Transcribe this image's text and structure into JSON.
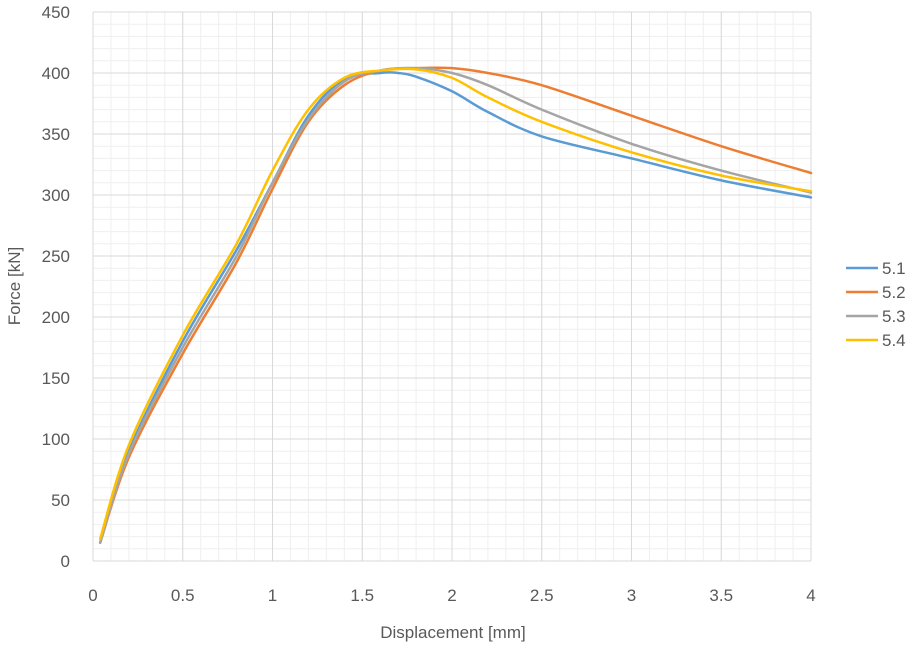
{
  "chart_data": {
    "type": "line",
    "xlabel": "Displacement [mm]",
    "ylabel": "Force [kN]",
    "xlim": [
      0,
      4
    ],
    "ylim": [
      0,
      450
    ],
    "x_ticks": [
      0,
      0.5,
      1,
      1.5,
      2,
      2.5,
      3,
      3.5,
      4
    ],
    "x_tick_labels": [
      "0",
      "0.5",
      "1",
      "1.5",
      "2",
      "2.5",
      "3",
      "3.5",
      "4"
    ],
    "y_ticks": [
      0,
      50,
      100,
      150,
      200,
      250,
      300,
      350,
      400,
      450
    ],
    "y_tick_labels": [
      "0",
      "50",
      "100",
      "150",
      "200",
      "250",
      "300",
      "350",
      "400",
      "450"
    ],
    "grid": true,
    "legend_position": "right",
    "series": [
      {
        "name": "5.1",
        "color": "#5B9BD5",
        "points": [
          [
            0.04,
            15
          ],
          [
            0.2,
            90
          ],
          [
            0.5,
            180
          ],
          [
            0.8,
            255
          ],
          [
            1.0,
            310
          ],
          [
            1.2,
            365
          ],
          [
            1.4,
            395
          ],
          [
            1.6,
            400
          ],
          [
            1.7,
            400
          ],
          [
            1.8,
            397
          ],
          [
            2.0,
            385
          ],
          [
            2.2,
            368
          ],
          [
            2.5,
            348
          ],
          [
            3.0,
            330
          ],
          [
            3.5,
            312
          ],
          [
            4.0,
            298
          ]
        ]
      },
      {
        "name": "5.2",
        "color": "#ED7D31",
        "points": [
          [
            0.04,
            15
          ],
          [
            0.2,
            85
          ],
          [
            0.5,
            170
          ],
          [
            0.8,
            245
          ],
          [
            1.0,
            305
          ],
          [
            1.2,
            360
          ],
          [
            1.4,
            390
          ],
          [
            1.6,
            402
          ],
          [
            1.8,
            404
          ],
          [
            2.0,
            404
          ],
          [
            2.2,
            400
          ],
          [
            2.5,
            390
          ],
          [
            3.0,
            365
          ],
          [
            3.5,
            340
          ],
          [
            4.0,
            318
          ]
        ]
      },
      {
        "name": "5.3",
        "color": "#A5A5A5",
        "points": [
          [
            0.04,
            15
          ],
          [
            0.2,
            88
          ],
          [
            0.5,
            175
          ],
          [
            0.8,
            250
          ],
          [
            1.0,
            310
          ],
          [
            1.2,
            362
          ],
          [
            1.4,
            393
          ],
          [
            1.6,
            402
          ],
          [
            1.8,
            404
          ],
          [
            2.0,
            400
          ],
          [
            2.2,
            390
          ],
          [
            2.5,
            370
          ],
          [
            3.0,
            342
          ],
          [
            3.5,
            320
          ],
          [
            4.0,
            302
          ]
        ]
      },
      {
        "name": "5.4",
        "color": "#FFC000",
        "points": [
          [
            0.04,
            18
          ],
          [
            0.2,
            95
          ],
          [
            0.5,
            185
          ],
          [
            0.8,
            260
          ],
          [
            1.0,
            320
          ],
          [
            1.2,
            370
          ],
          [
            1.4,
            396
          ],
          [
            1.6,
            402
          ],
          [
            1.8,
            403
          ],
          [
            2.0,
            396
          ],
          [
            2.2,
            380
          ],
          [
            2.5,
            360
          ],
          [
            3.0,
            335
          ],
          [
            3.5,
            316
          ],
          [
            4.0,
            303
          ]
        ]
      }
    ]
  }
}
